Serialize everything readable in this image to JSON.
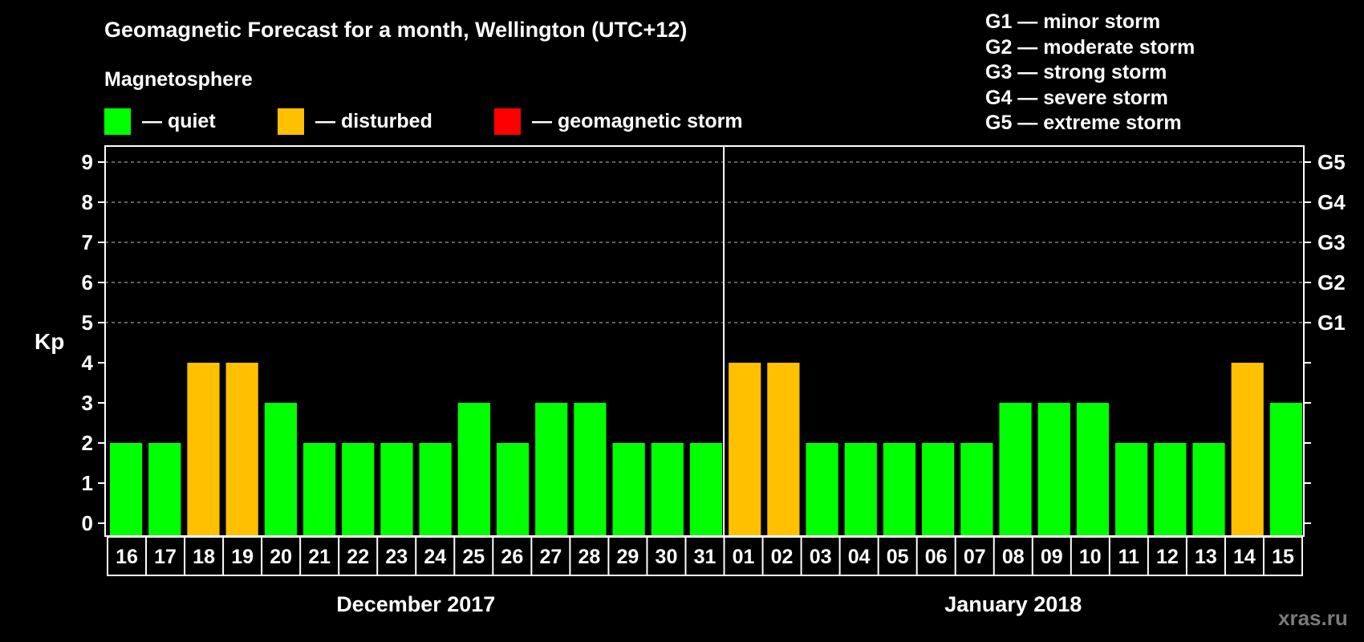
{
  "header": {
    "title": "Geomagnetic Forecast for a month, Wellington (UTC+12)",
    "subtitle": "Magnetosphere"
  },
  "legend": [
    {
      "label": "— quiet",
      "color": "#00ff00"
    },
    {
      "label": "— disturbed",
      "color": "#ffc000"
    },
    {
      "label": "— geomagnetic storm",
      "color": "#ff0000"
    }
  ],
  "storm_scale": [
    "G1 — minor storm",
    "G2 — moderate storm",
    "G3 — strong storm",
    "G4 — severe storm",
    "G5 — extreme storm"
  ],
  "watermark": "xras.ru",
  "colors": {
    "quiet": "#00ff00",
    "disturbed": "#ffc000",
    "storm": "#ff0000",
    "background": "#000000",
    "axis": "#ffffff",
    "grid": "#9a9a9a"
  },
  "chart_data": {
    "type": "bar",
    "title": "Geomagnetic Forecast for a month, Wellington (UTC+12)",
    "subtitle": "Magnetosphere",
    "ylabel": "Kp",
    "ylim": [
      0,
      9
    ],
    "yticks": [
      "0",
      "1",
      "2",
      "3",
      "4",
      "5",
      "6",
      "7",
      "8",
      "9"
    ],
    "right_axis_labels": [
      {
        "kp": 5,
        "label": "G1"
      },
      {
        "kp": 6,
        "label": "G2"
      },
      {
        "kp": 7,
        "label": "G3"
      },
      {
        "kp": 8,
        "label": "G4"
      },
      {
        "kp": 9,
        "label": "G5"
      }
    ],
    "grid": {
      "horizontal_dashed_from_kp": 5
    },
    "months": [
      {
        "label": "December 2017",
        "start_index": 0,
        "count": 16
      },
      {
        "label": "January 2018",
        "start_index": 16,
        "count": 15
      }
    ],
    "categories": [
      "16",
      "17",
      "18",
      "19",
      "20",
      "21",
      "22",
      "23",
      "24",
      "25",
      "26",
      "27",
      "28",
      "29",
      "30",
      "31",
      "01",
      "02",
      "03",
      "04",
      "05",
      "06",
      "07",
      "08",
      "09",
      "10",
      "11",
      "12",
      "13",
      "14",
      "15"
    ],
    "values": [
      2,
      2,
      4,
      4,
      3,
      2,
      2,
      2,
      2,
      3,
      2,
      3,
      3,
      2,
      2,
      2,
      4,
      4,
      2,
      2,
      2,
      2,
      2,
      3,
      3,
      3,
      2,
      2,
      2,
      4,
      3
    ],
    "status": [
      "quiet",
      "quiet",
      "disturbed",
      "disturbed",
      "quiet",
      "quiet",
      "quiet",
      "quiet",
      "quiet",
      "quiet",
      "quiet",
      "quiet",
      "quiet",
      "quiet",
      "quiet",
      "quiet",
      "disturbed",
      "disturbed",
      "quiet",
      "quiet",
      "quiet",
      "quiet",
      "quiet",
      "quiet",
      "quiet",
      "quiet",
      "quiet",
      "quiet",
      "quiet",
      "disturbed",
      "quiet"
    ],
    "legend": [
      "quiet",
      "disturbed",
      "geomagnetic storm"
    ]
  }
}
